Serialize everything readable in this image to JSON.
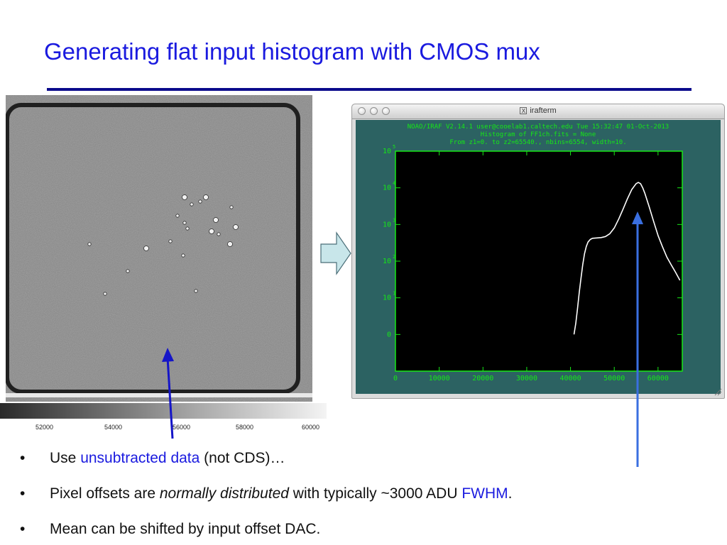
{
  "slide": {
    "title": "Generating flat input histogram with CMOS mux"
  },
  "colorbar": {
    "tick_labels": [
      "52000",
      "54000",
      "56000",
      "58000",
      "60000"
    ]
  },
  "terminal_window": {
    "title": "irafterm",
    "icon": "x11-icon",
    "header_lines": [
      "NOAO/IRAF V2.14.1 user@cooelab1.caltech.edu Tue 15:32:47 01-Oct-2013",
      "Histogram of FF1ch.fits = None",
      "From z1=0. to z2=65540., nbins=6554, width=10."
    ]
  },
  "chart_data": {
    "type": "line",
    "title": "Histogram of FF1ch.fits = None",
    "y_scale": "log",
    "xlim": [
      0,
      65540
    ],
    "ylim": [
      1,
      100000
    ],
    "x_ticks": [
      0,
      10000,
      20000,
      30000,
      40000,
      50000,
      60000
    ],
    "x_tick_labels": [
      "0",
      "10000",
      "20000",
      "30000",
      "40000",
      "50000",
      "60000"
    ],
    "y_ticks": [
      1,
      10,
      100,
      1000,
      10000,
      100000
    ],
    "y_tick_bases": [
      "0",
      "10",
      "10",
      "10",
      "10",
      "10"
    ],
    "y_tick_exponents": [
      "",
      "1",
      "2",
      "3",
      "4",
      "5"
    ],
    "series": [
      {
        "x": [
          40800,
          41200,
          41600,
          42000,
          42400,
          42800,
          43200,
          43600,
          44000,
          44500,
          45000,
          46000,
          47000,
          48000,
          49000,
          50000,
          51000,
          52000,
          53000,
          54000,
          55000,
          55500,
          56000,
          56500,
          57000,
          58000,
          59000,
          60000,
          61000,
          62000,
          63000,
          64000,
          65000
        ],
        "y": [
          1,
          2,
          5,
          14,
          35,
          80,
          160,
          250,
          330,
          390,
          420,
          430,
          440,
          470,
          560,
          800,
          1400,
          2600,
          5000,
          9000,
          13000,
          14000,
          13000,
          10000,
          7000,
          3000,
          1200,
          500,
          250,
          130,
          80,
          50,
          30
        ]
      }
    ],
    "background": "#000000",
    "line_color": "#ffffff",
    "axis_color": "#16e816"
  },
  "bullets": [
    {
      "segments": [
        {
          "text": "Use ",
          "style": "normal"
        },
        {
          "text": "unsubtracted data",
          "style": "blue"
        },
        {
          "text": " (not CDS)…",
          "style": "normal"
        }
      ]
    },
    {
      "segments": [
        {
          "text": "Pixel offsets are ",
          "style": "normal"
        },
        {
          "text": "normally distributed",
          "style": "italic"
        },
        {
          "text": " with typically ~3000 ADU ",
          "style": "normal"
        },
        {
          "text": "FWHM",
          "style": "blue"
        },
        {
          "text": ".",
          "style": "normal"
        }
      ]
    },
    {
      "segments": [
        {
          "text": "Mean can be shifted by input offset DAC.",
          "style": "normal"
        }
      ]
    }
  ],
  "bullet_char": "•",
  "colors": {
    "title": "#1a1adf",
    "rule": "#0b0b8c",
    "arrow_left": "#1515c8",
    "arrow_right": "#3a6fe0",
    "flow_arrow_fill": "#c8e6ea",
    "terminal_bg": "#2c6262"
  }
}
